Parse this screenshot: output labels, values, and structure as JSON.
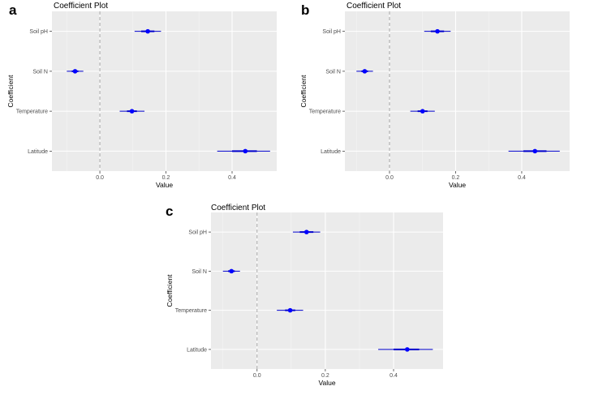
{
  "panel_labels": [
    "a",
    "b",
    "c"
  ],
  "chart_data": [
    {
      "type": "scatter",
      "title": "Coefficient Plot",
      "xlabel": "Value",
      "ylabel": "Coefficient",
      "categories": [
        "Soil pH",
        "Soil N",
        "Temperature",
        "Latitude"
      ],
      "estimates": [
        0.145,
        -0.075,
        0.097,
        0.44
      ],
      "inner_interval": [
        [
          0.125,
          0.165
        ],
        [
          -0.085,
          -0.065
        ],
        [
          0.082,
          0.112
        ],
        [
          0.4,
          0.475
        ]
      ],
      "outer_interval": [
        [
          0.105,
          0.185
        ],
        [
          -0.1,
          -0.05
        ],
        [
          0.06,
          0.135
        ],
        [
          0.355,
          0.515
        ]
      ],
      "xlim": [
        -0.145,
        0.535
      ],
      "xticks": [
        0.0,
        0.2,
        0.4
      ],
      "xtick_labels": [
        "0.0",
        "0.2",
        "0.4"
      ],
      "reference_line": 0,
      "grid": true,
      "point_color": "#0000ff",
      "interval_color": "#0000cc",
      "background": "#ebebeb"
    },
    {
      "type": "scatter",
      "title": "Coefficient Plot",
      "xlabel": "Value",
      "ylabel": "Coefficient",
      "categories": [
        "Soil pH",
        "Soil N",
        "Temperature",
        "Latitude"
      ],
      "estimates": [
        0.145,
        -0.075,
        0.1,
        0.44
      ],
      "inner_interval": [
        [
          0.125,
          0.165
        ],
        [
          -0.085,
          -0.065
        ],
        [
          0.085,
          0.115
        ],
        [
          0.405,
          0.475
        ]
      ],
      "outer_interval": [
        [
          0.105,
          0.185
        ],
        [
          -0.1,
          -0.05
        ],
        [
          0.063,
          0.137
        ],
        [
          0.36,
          0.515
        ]
      ],
      "xlim": [
        -0.135,
        0.545
      ],
      "xticks": [
        0.0,
        0.2,
        0.4
      ],
      "xtick_labels": [
        "0.0",
        "0.2",
        "0.4"
      ],
      "reference_line": 0,
      "grid": true,
      "point_color": "#0000ff",
      "interval_color": "#0000cc",
      "background": "#ebebeb"
    },
    {
      "type": "scatter",
      "title": "Coefficient Plot",
      "xlabel": "Value",
      "ylabel": "Coefficient",
      "categories": [
        "Soil pH",
        "Soil N",
        "Temperature",
        "Latitude"
      ],
      "estimates": [
        0.145,
        -0.075,
        0.097,
        0.44
      ],
      "inner_interval": [
        [
          0.125,
          0.165
        ],
        [
          -0.085,
          -0.065
        ],
        [
          0.082,
          0.112
        ],
        [
          0.4,
          0.475
        ]
      ],
      "outer_interval": [
        [
          0.105,
          0.185
        ],
        [
          -0.1,
          -0.05
        ],
        [
          0.058,
          0.135
        ],
        [
          0.355,
          0.515
        ]
      ],
      "xlim": [
        -0.135,
        0.545
      ],
      "xticks": [
        0.0,
        0.2,
        0.4
      ],
      "xtick_labels": [
        "0.0",
        "0.2",
        "0.4"
      ],
      "reference_line": 0,
      "grid": true,
      "point_color": "#0000ff",
      "interval_color": "#0000cc",
      "background": "#ebebeb"
    }
  ]
}
